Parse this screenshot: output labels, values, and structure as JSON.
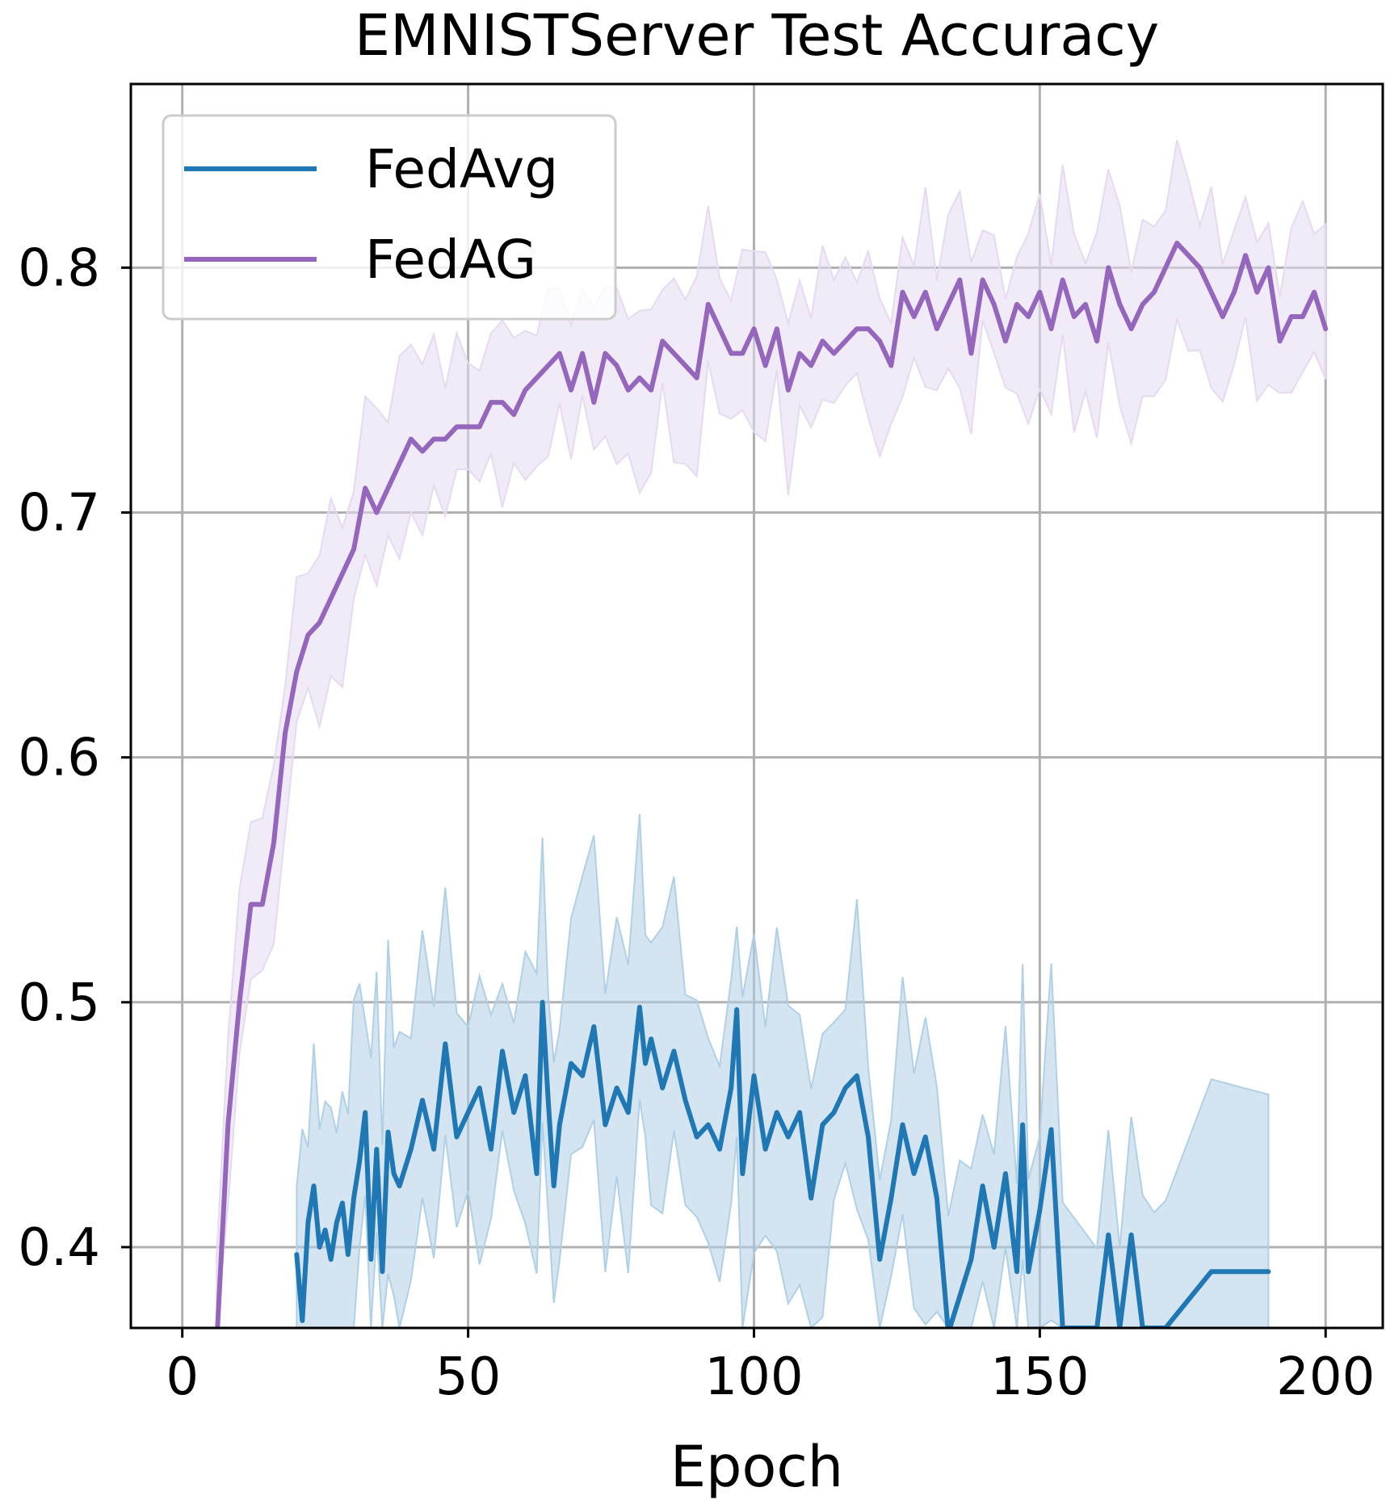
{
  "chart_data": {
    "type": "line",
    "title": "EMNISTServer Test Accuracy",
    "xlabel": "Epoch",
    "ylabel": "",
    "xlim": [
      -9,
      210
    ],
    "ylim": [
      0.367,
      0.875
    ],
    "xticks": [
      0,
      50,
      100,
      150,
      200
    ],
    "yticks": [
      0.4,
      0.5,
      0.6,
      0.7,
      0.8
    ],
    "grid": true,
    "legend_position": "upper-left",
    "series": [
      {
        "name": "FedAvg",
        "color": "#1f77b4",
        "band_color": "#b0d0e6",
        "x": [
          20,
          21,
          22,
          23,
          24,
          25,
          26,
          27,
          28,
          29,
          30,
          31,
          32,
          33,
          34,
          35,
          36,
          37,
          38,
          40,
          42,
          44,
          46,
          48,
          50,
          52,
          54,
          56,
          58,
          60,
          62,
          63,
          64,
          65,
          66,
          68,
          70,
          72,
          74,
          76,
          78,
          80,
          81,
          82,
          84,
          86,
          88,
          90,
          92,
          94,
          96,
          97,
          98,
          100,
          102,
          104,
          106,
          108,
          110,
          112,
          114,
          116,
          118,
          120,
          122,
          124,
          126,
          128,
          130,
          132,
          134,
          136,
          138,
          140,
          142,
          144,
          146,
          147,
          148,
          150,
          152,
          154,
          160,
          162,
          164,
          166,
          168,
          170,
          172,
          180,
          190
        ],
        "y": [
          0.397,
          0.37,
          0.41,
          0.425,
          0.4,
          0.407,
          0.395,
          0.41,
          0.418,
          0.397,
          0.42,
          0.435,
          0.455,
          0.395,
          0.44,
          0.39,
          0.447,
          0.43,
          0.425,
          0.44,
          0.46,
          0.44,
          0.483,
          0.445,
          0.455,
          0.465,
          0.44,
          0.48,
          0.455,
          0.47,
          0.43,
          0.5,
          0.46,
          0.425,
          0.45,
          0.475,
          0.47,
          0.49,
          0.45,
          0.465,
          0.455,
          0.498,
          0.475,
          0.485,
          0.465,
          0.48,
          0.46,
          0.445,
          0.45,
          0.44,
          0.465,
          0.497,
          0.43,
          0.47,
          0.44,
          0.455,
          0.445,
          0.455,
          0.42,
          0.45,
          0.455,
          0.465,
          0.47,
          0.445,
          0.395,
          0.42,
          0.45,
          0.43,
          0.445,
          0.42,
          0.365,
          0.38,
          0.395,
          0.425,
          0.4,
          0.43,
          0.39,
          0.45,
          0.39,
          0.415,
          0.448,
          0.367,
          0.367,
          0.405,
          0.367,
          0.405,
          0.367,
          0.367,
          0.367,
          0.39,
          0.39
        ]
      },
      {
        "name": "FedAG",
        "color": "#9467bd",
        "band_color": "#e6daf0",
        "x": [
          6,
          8,
          10,
          12,
          14,
          16,
          18,
          20,
          22,
          24,
          26,
          28,
          30,
          32,
          34,
          36,
          38,
          40,
          42,
          44,
          46,
          48,
          50,
          52,
          54,
          56,
          58,
          60,
          62,
          64,
          66,
          68,
          70,
          72,
          74,
          76,
          78,
          80,
          82,
          84,
          86,
          88,
          90,
          92,
          94,
          96,
          98,
          100,
          102,
          104,
          106,
          108,
          110,
          112,
          114,
          116,
          118,
          120,
          122,
          124,
          126,
          128,
          130,
          132,
          134,
          136,
          138,
          140,
          142,
          144,
          146,
          148,
          150,
          152,
          154,
          156,
          158,
          160,
          162,
          164,
          166,
          168,
          170,
          172,
          174,
          176,
          178,
          180,
          182,
          184,
          186,
          188,
          190,
          192,
          194,
          196,
          198,
          200
        ],
        "y": [
          0.36,
          0.45,
          0.5,
          0.54,
          0.54,
          0.565,
          0.61,
          0.635,
          0.65,
          0.655,
          0.665,
          0.675,
          0.685,
          0.71,
          0.7,
          0.71,
          0.72,
          0.73,
          0.725,
          0.73,
          0.73,
          0.735,
          0.735,
          0.735,
          0.745,
          0.745,
          0.74,
          0.75,
          0.755,
          0.76,
          0.765,
          0.75,
          0.765,
          0.745,
          0.765,
          0.76,
          0.75,
          0.755,
          0.75,
          0.77,
          0.765,
          0.76,
          0.755,
          0.785,
          0.775,
          0.765,
          0.765,
          0.775,
          0.76,
          0.775,
          0.75,
          0.765,
          0.76,
          0.77,
          0.765,
          0.77,
          0.775,
          0.775,
          0.77,
          0.76,
          0.79,
          0.78,
          0.79,
          0.775,
          0.785,
          0.795,
          0.765,
          0.795,
          0.785,
          0.77,
          0.785,
          0.78,
          0.79,
          0.775,
          0.795,
          0.78,
          0.785,
          0.77,
          0.8,
          0.785,
          0.775,
          0.785,
          0.79,
          0.8,
          0.81,
          0.805,
          0.8,
          0.79,
          0.78,
          0.79,
          0.805,
          0.79,
          0.8,
          0.77,
          0.78,
          0.78,
          0.79,
          0.775
        ]
      }
    ]
  }
}
